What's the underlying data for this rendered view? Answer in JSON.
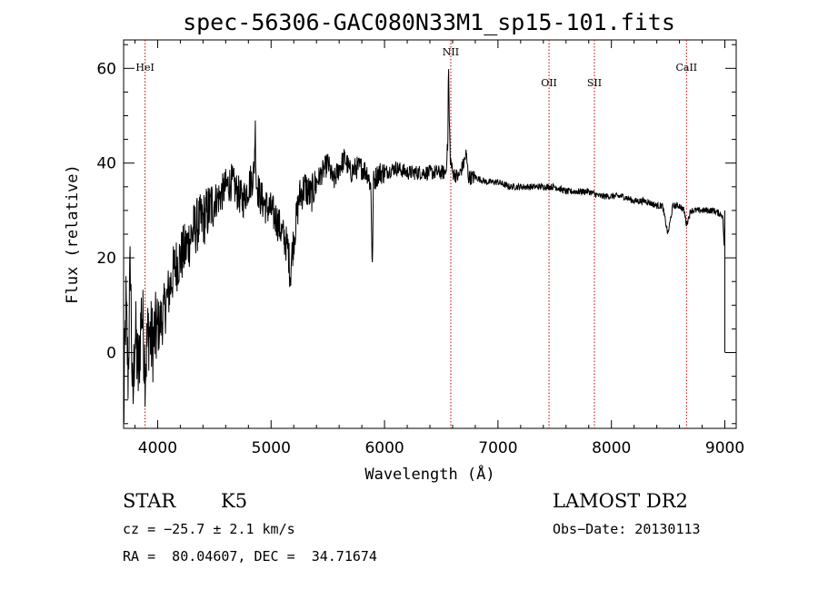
{
  "chart_data": {
    "type": "line",
    "title": "spec-56306-GAC080N33M1_sp15-101.fits",
    "xlabel": "Wavelength (Å)",
    "ylabel": "Flux (relative)",
    "xlim": [
      3700,
      9100
    ],
    "ylim": [
      -16,
      66
    ],
    "x_ticks": [
      4000,
      5000,
      6000,
      7000,
      8000,
      9000
    ],
    "y_ticks": [
      0,
      20,
      40,
      60
    ],
    "grid": false,
    "series": [
      {
        "x": [
          3700,
          3720,
          3740,
          3760,
          3780,
          3800,
          3830,
          3860,
          3890,
          3920,
          3950,
          4000,
          4050,
          4100,
          4150,
          4200,
          4250,
          4300,
          4350,
          4400,
          4450,
          4500,
          4550,
          4600,
          4650,
          4700,
          4750,
          4800,
          4850,
          4860,
          4870,
          4900,
          4950,
          5000,
          5050,
          5100,
          5150,
          5170,
          5180,
          5200,
          5250,
          5300,
          5350,
          5400,
          5450,
          5500,
          5550,
          5600,
          5650,
          5700,
          5750,
          5800,
          5850,
          5880,
          5890,
          5895,
          5900,
          5950,
          6000,
          6100,
          6200,
          6300,
          6400,
          6500,
          6540,
          6560,
          6563,
          6570,
          6580,
          6600,
          6650,
          6700,
          6720,
          6740,
          6800,
          6900,
          7000,
          7100,
          7200,
          7300,
          7400,
          7500,
          7600,
          7700,
          7800,
          7900,
          8000,
          8100,
          8200,
          8300,
          8400,
          8450,
          8498,
          8542,
          8600,
          8640,
          8662,
          8700,
          8800,
          8900,
          8980,
          9000,
          9000
        ],
        "y": [
          -15,
          10,
          -5,
          20,
          -13,
          5,
          -5,
          10,
          -3,
          5,
          2,
          5,
          8,
          13,
          18,
          20,
          22,
          25,
          27,
          28,
          30,
          32,
          33,
          35,
          36,
          34,
          32,
          35,
          38,
          48,
          36,
          33,
          31,
          30,
          28,
          25,
          22,
          16,
          20,
          24,
          33,
          35,
          33,
          36,
          38,
          40,
          36,
          39,
          41,
          38,
          39,
          39,
          38,
          35,
          21,
          17,
          36,
          38,
          38,
          39,
          38,
          38,
          38,
          38,
          38,
          45,
          63,
          50,
          41,
          38,
          37,
          40,
          42,
          37,
          37,
          36,
          36,
          35,
          35,
          35,
          35,
          35,
          34,
          34,
          34,
          33,
          33,
          33,
          32,
          32,
          31,
          31,
          25,
          31,
          31,
          30,
          27,
          30,
          30,
          30,
          29,
          20,
          0
        ]
      }
    ],
    "annotations": [
      {
        "label": "HeI",
        "x": 3889
      },
      {
        "label": "NII",
        "x": 6584
      },
      {
        "label": "OII",
        "x": 7450
      },
      {
        "label": "SII",
        "x": 7850
      },
      {
        "label": "CaII",
        "x": 8662
      }
    ],
    "annotation_color": "#c00000"
  },
  "info": {
    "class": "STAR",
    "subclass": "K5",
    "survey": "LAMOST DR2",
    "cz": "cz = −25.7 ± 2.1 km/s",
    "obs_date": "Obs−Date: 20130113",
    "coords": "RA =  80.04607, DEC =  34.71674"
  }
}
